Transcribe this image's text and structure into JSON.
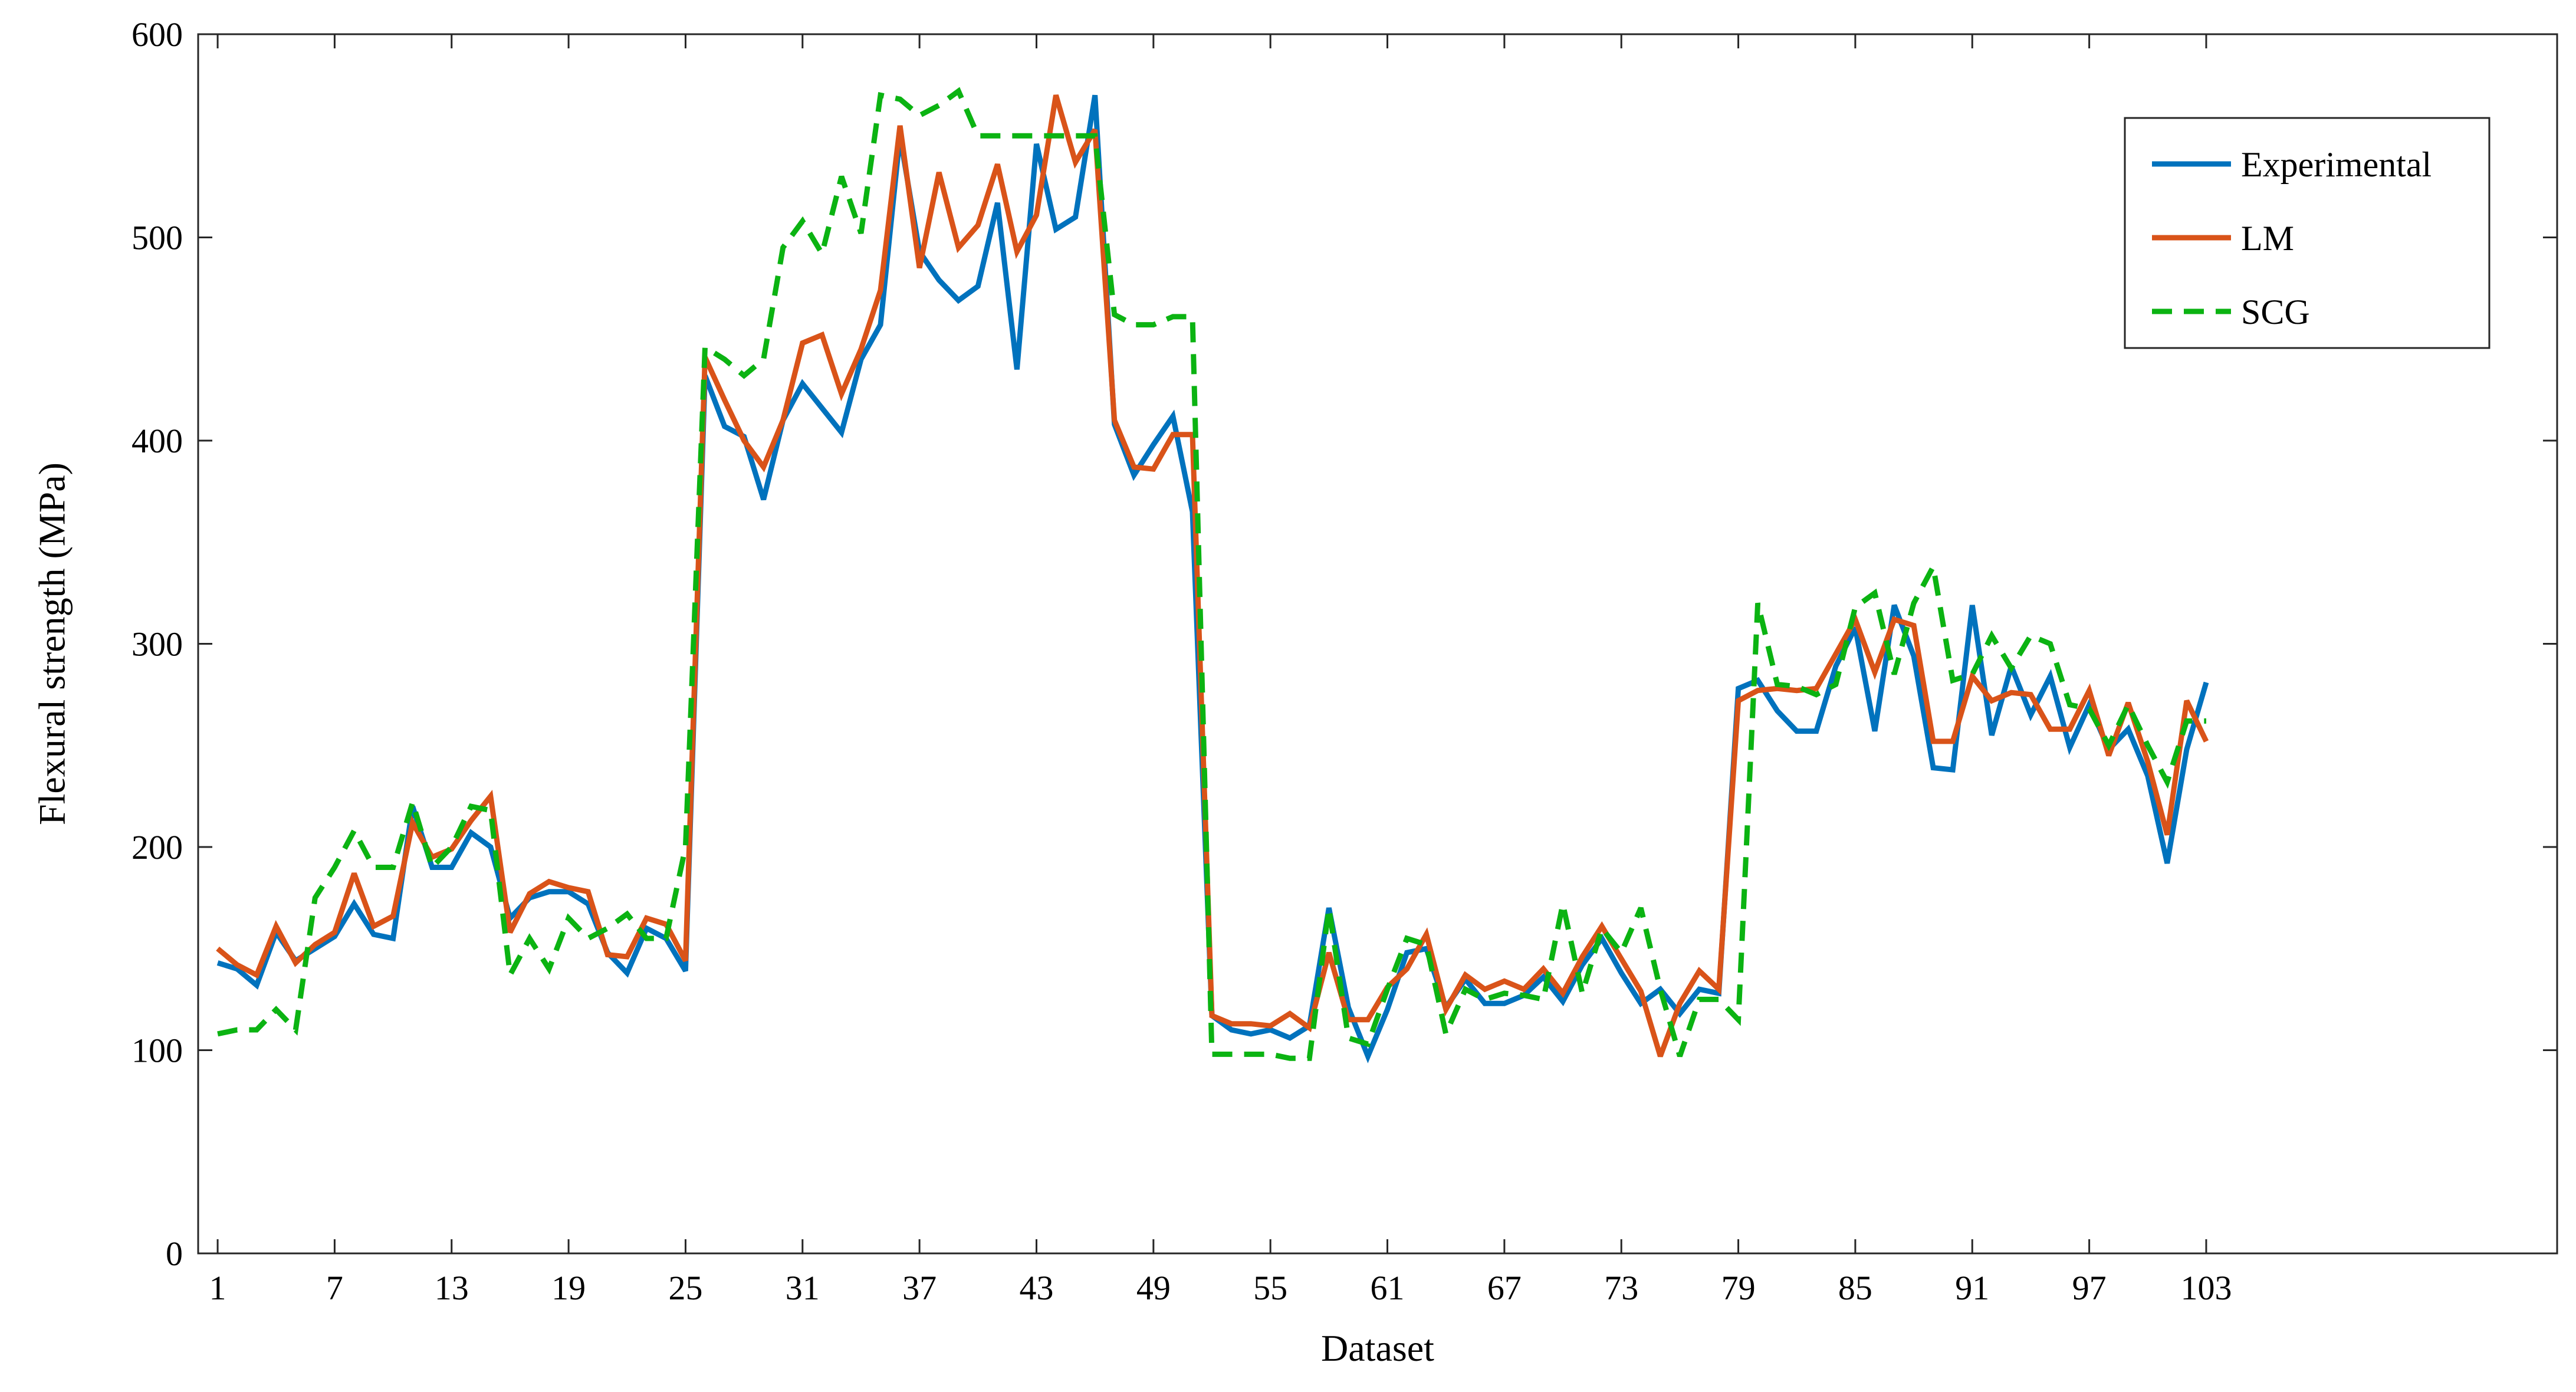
{
  "chart_data": {
    "type": "line",
    "xlabel": "Dataset",
    "ylabel": "Flexural strength (MPa)",
    "xlim": [
      0,
      121
    ],
    "ylim": [
      0,
      600
    ],
    "xticks": [
      1,
      7,
      13,
      19,
      25,
      31,
      37,
      43,
      49,
      55,
      61,
      67,
      73,
      79,
      85,
      91,
      97,
      103
    ],
    "yticks": [
      0,
      100,
      200,
      300,
      400,
      500,
      600
    ],
    "grid": false,
    "legend_position": "top-right",
    "series": [
      {
        "name": "Experimental",
        "color": "#0072BD",
        "style": "solid",
        "values": [
          143,
          140,
          132,
          158,
          144,
          150,
          156,
          172,
          157,
          155,
          220,
          190,
          190,
          207,
          200,
          165,
          175,
          178,
          178,
          172,
          148,
          138,
          160,
          155,
          139,
          432,
          407,
          402,
          371,
          410,
          428,
          416,
          404,
          440,
          457,
          550,
          493,
          479,
          469,
          476,
          517,
          435,
          546,
          504,
          510,
          570,
          408,
          383,
          398,
          412,
          365,
          117,
          110,
          108,
          110,
          106,
          112,
          170,
          121,
          97,
          120,
          148,
          150,
          121,
          135,
          123,
          123,
          127,
          136,
          124,
          142,
          155,
          138,
          123,
          130,
          118,
          130,
          128,
          278,
          282,
          267,
          257,
          257,
          289,
          308,
          257,
          319,
          294,
          239,
          238,
          319,
          255,
          289,
          265,
          284,
          249,
          270,
          248,
          258,
          235,
          192,
          248,
          281
        ]
      },
      {
        "name": "LM",
        "color": "#D95319",
        "style": "solid",
        "values": [
          150,
          142,
          137,
          161,
          143,
          152,
          158,
          187,
          161,
          166,
          212,
          195,
          199,
          213,
          225,
          158,
          177,
          183,
          180,
          178,
          147,
          146,
          165,
          162,
          144,
          441,
          420,
          400,
          387,
          410,
          448,
          452,
          423,
          445,
          474,
          555,
          485,
          532,
          495,
          506,
          536,
          493,
          511,
          570,
          537,
          553,
          410,
          387,
          386,
          403,
          403,
          117,
          113,
          113,
          112,
          118,
          111,
          148,
          115,
          115,
          131,
          140,
          157,
          120,
          137,
          130,
          134,
          130,
          140,
          128,
          146,
          161,
          145,
          129,
          97,
          123,
          139,
          130,
          272,
          277,
          278,
          277,
          278,
          295,
          312,
          286,
          312,
          309,
          252,
          252,
          284,
          272,
          276,
          275,
          258,
          258,
          277,
          245,
          271,
          242,
          206,
          272,
          252
        ]
      },
      {
        "name": "SCG",
        "color": "#0BB312",
        "style": "dashed",
        "values": [
          108,
          110,
          110,
          120,
          110,
          175,
          190,
          208,
          190,
          190,
          222,
          190,
          200,
          220,
          218,
          137,
          155,
          140,
          165,
          155,
          160,
          167,
          155,
          155,
          200,
          446,
          440,
          432,
          440,
          495,
          508,
          492,
          530,
          502,
          570,
          568,
          560,
          565,
          572,
          550,
          550,
          550,
          550,
          550,
          550,
          550,
          462,
          457,
          457,
          461,
          461,
          98,
          98,
          98,
          98,
          96,
          96,
          170,
          106,
          103,
          130,
          155,
          152,
          108,
          130,
          125,
          128,
          127,
          125,
          172,
          128,
          160,
          148,
          170,
          130,
          97,
          125,
          125,
          115,
          320,
          280,
          279,
          275,
          280,
          318,
          325,
          285,
          320,
          338,
          282,
          285,
          304,
          288,
          304,
          300,
          270,
          268,
          250,
          270,
          250,
          232,
          262,
          262
        ]
      }
    ]
  }
}
